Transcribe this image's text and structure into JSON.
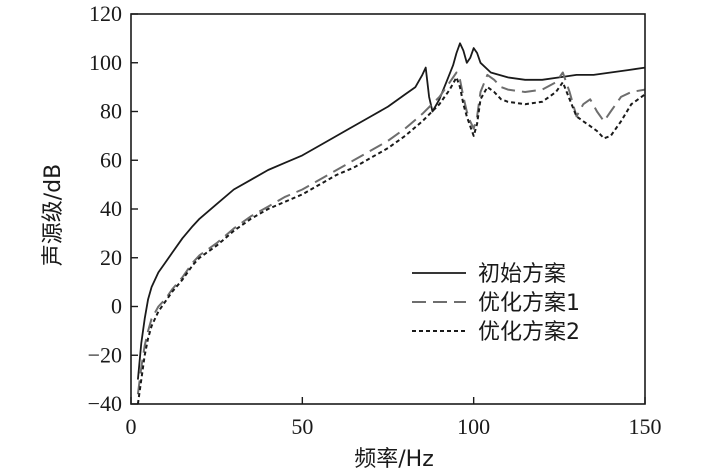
{
  "chart_data": {
    "type": "line",
    "title": "",
    "xlabel": "频率/Hz",
    "ylabel": "声源级/dB",
    "xlim": [
      0,
      150
    ],
    "ylim": [
      -40,
      120
    ],
    "xticks": [
      0,
      50,
      100,
      150
    ],
    "yticks": [
      -40,
      -20,
      0,
      20,
      40,
      60,
      80,
      100,
      120
    ],
    "grid": false,
    "legend_position": "lower-right",
    "series": [
      {
        "name": "初始方案",
        "style": "solid",
        "color": "#1a1a1a",
        "x": [
          2,
          3,
          4,
          5,
          6,
          8,
          10,
          12,
          15,
          18,
          20,
          25,
          30,
          35,
          40,
          45,
          50,
          55,
          60,
          65,
          70,
          75,
          80,
          83,
          85,
          86,
          87,
          88,
          90,
          92,
          94,
          95,
          96,
          97,
          98,
          99,
          100,
          101,
          102,
          105,
          110,
          115,
          120,
          125,
          130,
          135,
          140,
          145,
          150
        ],
        "y": [
          -30,
          -15,
          -5,
          3,
          8,
          14,
          18,
          22,
          28,
          33,
          36,
          42,
          48,
          52,
          56,
          59,
          62,
          66,
          70,
          74,
          78,
          82,
          87,
          90,
          95,
          98,
          86,
          80,
          85,
          92,
          99,
          104,
          108,
          105,
          100,
          102,
          106,
          104,
          100,
          96,
          94,
          93,
          93,
          94,
          95,
          95,
          96,
          97,
          98
        ]
      },
      {
        "name": "优化方案1",
        "style": "dashed",
        "color": "#6e6e6e",
        "x": [
          2,
          3,
          4,
          5,
          6,
          8,
          10,
          12,
          15,
          18,
          20,
          25,
          30,
          35,
          40,
          45,
          50,
          55,
          60,
          65,
          70,
          75,
          80,
          85,
          90,
          93,
          95,
          96,
          97,
          98,
          99,
          100,
          101,
          102,
          104,
          106,
          108,
          110,
          115,
          120,
          124,
          126,
          128,
          130,
          132,
          134,
          136,
          138,
          140,
          143,
          146,
          150
        ],
        "y": [
          -36,
          -25,
          -16,
          -10,
          -5,
          0,
          3,
          7,
          12,
          18,
          21,
          26,
          32,
          37,
          41,
          45,
          48,
          52,
          56,
          60,
          64,
          68,
          73,
          79,
          86,
          92,
          96,
          93,
          86,
          80,
          76,
          73,
          78,
          88,
          95,
          93,
          90,
          89,
          88,
          89,
          92,
          96,
          88,
          78,
          83,
          85,
          80,
          76,
          80,
          86,
          88,
          89
        ]
      },
      {
        "name": "优化方案2",
        "style": "dotted",
        "color": "#1a1a1a",
        "x": [
          2,
          3,
          4,
          5,
          6,
          8,
          10,
          12,
          15,
          18,
          20,
          25,
          30,
          35,
          40,
          45,
          50,
          55,
          60,
          65,
          70,
          75,
          80,
          85,
          90,
          93,
          95,
          96,
          97,
          98,
          99,
          100,
          101,
          102,
          104,
          106,
          108,
          110,
          115,
          120,
          124,
          126,
          128,
          130,
          132,
          134,
          136,
          138,
          140,
          143,
          146,
          150
        ],
        "y": [
          -40,
          -30,
          -20,
          -13,
          -8,
          -2,
          2,
          6,
          11,
          17,
          20,
          25,
          31,
          36,
          40,
          43,
          46,
          50,
          54,
          57,
          61,
          65,
          70,
          76,
          83,
          89,
          94,
          90,
          83,
          78,
          74,
          70,
          75,
          85,
          90,
          88,
          85,
          84,
          83,
          84,
          88,
          92,
          85,
          78,
          76,
          74,
          72,
          69,
          70,
          76,
          83,
          87
        ]
      }
    ]
  }
}
